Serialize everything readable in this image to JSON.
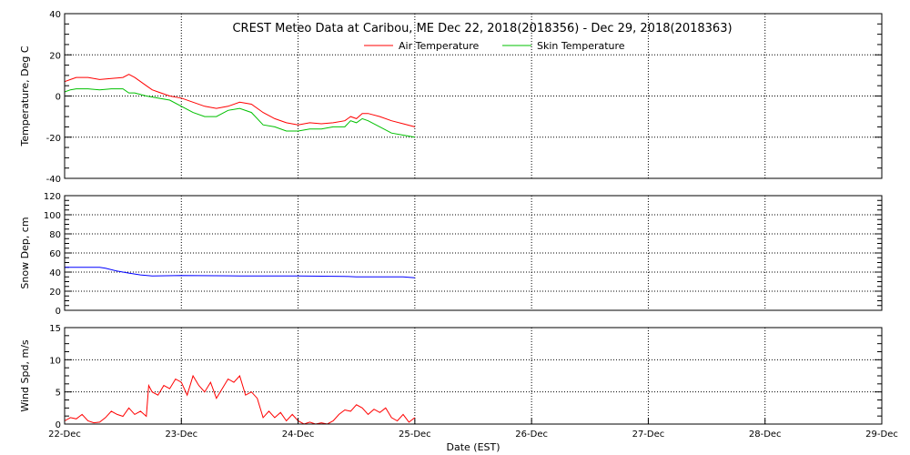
{
  "title": "CREST Meteo Data at Caribou, ME   Dec 22, 2018(2018356) - Dec 29, 2018(2018363)",
  "xlabel": "Date (EST)",
  "x_ticks": [
    "22-Dec",
    "23-Dec",
    "24-Dec",
    "25-Dec",
    "26-Dec",
    "27-Dec",
    "28-Dec",
    "29-Dec"
  ],
  "colors": {
    "air": "#ff0000",
    "skin": "#00c000",
    "snow": "#0000ff",
    "wind": "#ff0000",
    "grid": "#000000"
  },
  "chart_data": [
    {
      "type": "line",
      "ylabel": "Temperature, Deg C",
      "ylim": [
        -40,
        40
      ],
      "y_ticks": [
        -40,
        -20,
        0,
        20,
        40
      ],
      "xlim": [
        0,
        7
      ],
      "grid": true,
      "legend": "top-center",
      "series": [
        {
          "name": "Air Temperature",
          "color": "#ff0000",
          "x": [
            0,
            0.05,
            0.1,
            0.2,
            0.3,
            0.4,
            0.5,
            0.55,
            0.6,
            0.7,
            0.75,
            0.8,
            0.9,
            1.0,
            1.1,
            1.2,
            1.3,
            1.4,
            1.5,
            1.6,
            1.7,
            1.8,
            1.9,
            2.0,
            2.1,
            2.2,
            2.3,
            2.4,
            2.45,
            2.5,
            2.55,
            2.6,
            2.7,
            2.8,
            2.9,
            3.0
          ],
          "y": [
            7,
            8,
            9,
            9,
            8,
            8.5,
            9,
            10.5,
            9,
            5,
            3,
            2,
            0,
            -1,
            -3,
            -5,
            -6,
            -5,
            -3,
            -4,
            -8,
            -11,
            -13,
            -14,
            -13,
            -13.5,
            -13,
            -12,
            -10,
            -11,
            -8.5,
            -8.5,
            -10,
            -12,
            -13.5,
            -15
          ]
        },
        {
          "name": "Skin Temperature",
          "color": "#00c000",
          "x": [
            0,
            0.05,
            0.1,
            0.2,
            0.3,
            0.4,
            0.5,
            0.55,
            0.6,
            0.7,
            0.75,
            0.8,
            0.9,
            1.0,
            1.1,
            1.2,
            1.3,
            1.4,
            1.5,
            1.6,
            1.7,
            1.8,
            1.9,
            2.0,
            2.1,
            2.2,
            2.3,
            2.4,
            2.45,
            2.5,
            2.55,
            2.6,
            2.7,
            2.8,
            2.9,
            3.0
          ],
          "y": [
            2,
            3,
            3.5,
            3.5,
            3,
            3.5,
            3.5,
            1.5,
            1.5,
            0,
            -0.5,
            -1,
            -2,
            -5,
            -8,
            -10,
            -10,
            -7,
            -6,
            -8,
            -14,
            -15,
            -17,
            -17,
            -16,
            -16,
            -15,
            -15,
            -12,
            -13,
            -11,
            -12,
            -15,
            -18,
            -19,
            -20
          ]
        }
      ]
    },
    {
      "type": "line",
      "ylabel": "Snow Dep, cm",
      "ylim": [
        0,
        120
      ],
      "y_ticks": [
        0,
        20,
        40,
        60,
        80,
        100,
        120
      ],
      "xlim": [
        0,
        7
      ],
      "grid": true,
      "series": [
        {
          "color": "#0000ff",
          "x": [
            0,
            0.3,
            0.35,
            0.45,
            0.55,
            0.65,
            0.75,
            1.0,
            1.5,
            2.0,
            2.4,
            2.5,
            2.9,
            3.0
          ],
          "y": [
            45,
            45,
            44,
            41,
            39,
            37,
            36,
            36.5,
            36,
            36,
            35.5,
            35,
            35,
            34
          ]
        }
      ]
    },
    {
      "type": "line",
      "ylabel": "Wind Spd, m/s",
      "ylim": [
        0,
        15
      ],
      "y_ticks": [
        0,
        5,
        10,
        15
      ],
      "xlim": [
        0,
        7
      ],
      "grid": true,
      "series": [
        {
          "color": "#ff0000",
          "x": [
            0,
            0.05,
            0.1,
            0.15,
            0.2,
            0.25,
            0.3,
            0.35,
            0.4,
            0.45,
            0.5,
            0.55,
            0.6,
            0.65,
            0.7,
            0.72,
            0.75,
            0.8,
            0.85,
            0.9,
            0.95,
            1.0,
            1.05,
            1.1,
            1.15,
            1.2,
            1.25,
            1.3,
            1.35,
            1.4,
            1.45,
            1.5,
            1.55,
            1.6,
            1.65,
            1.7,
            1.75,
            1.8,
            1.85,
            1.9,
            1.95,
            2.0,
            2.05,
            2.1,
            2.15,
            2.2,
            2.25,
            2.3,
            2.35,
            2.4,
            2.45,
            2.5,
            2.55,
            2.6,
            2.65,
            2.7,
            2.75,
            2.8,
            2.85,
            2.9,
            2.95,
            3.0
          ],
          "y": [
            0.5,
            1,
            0.8,
            1.5,
            0.5,
            0.2,
            0.3,
            1,
            2,
            1.5,
            1.2,
            2.5,
            1.5,
            2,
            1.2,
            6,
            5,
            4.5,
            6,
            5.5,
            7,
            6.5,
            4.5,
            7.5,
            6,
            5,
            6.5,
            4,
            5.5,
            7,
            6.5,
            7.5,
            4.5,
            5,
            4,
            1,
            2,
            1,
            1.8,
            0.5,
            1.5,
            0.5,
            0,
            0.3,
            0,
            0.2,
            0,
            0.5,
            1.5,
            2.2,
            2,
            3,
            2.5,
            1.5,
            2.3,
            1.8,
            2.5,
            1,
            0.5,
            1.5,
            0.3,
            1
          ]
        }
      ]
    }
  ]
}
